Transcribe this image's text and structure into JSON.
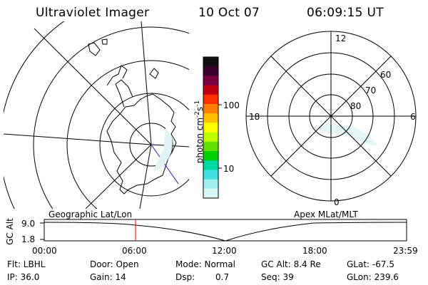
{
  "header": {
    "title": "Ultraviolet Imager",
    "date": "10 Oct 07",
    "time": "06:09:15 UT"
  },
  "colorbar": {
    "unit_prefix": "photon cm",
    "unit_exp1": "-2",
    "unit_mid": "s",
    "unit_exp2": "-1",
    "tick_100": "100",
    "tick_10": "10",
    "colors": [
      "#101010",
      "#3a0030",
      "#7a0040",
      "#c00010",
      "#ff3000",
      "#ff8000",
      "#ffc000",
      "#ffff00",
      "#c0ff00",
      "#60e000",
      "#00d000",
      "#00d8a0",
      "#40e0e0",
      "#a0f0f0",
      "#d8f8f8"
    ]
  },
  "polar_plot": {
    "label_top": "12",
    "label_left": "18",
    "label_right": "6",
    "label_bottom": "0",
    "lat_60": "60",
    "lat_70": "70",
    "lat_80": "80"
  },
  "timeline": {
    "axis_label": "GC Alt",
    "y_max": "9.0",
    "y_min": "1.8",
    "left_title": "Geographic Lat/Lon",
    "right_title": "Apex MLat/MLT",
    "ticks": [
      "00:00",
      "06:00",
      "12:00",
      "18:00",
      "23:59"
    ],
    "marker_time": "06:09",
    "marker_color": "#e00000"
  },
  "info": {
    "flt": "Flt: LBHL",
    "ip": "IP: 36.0",
    "door": "Door: Open",
    "gain": "Gain: 14",
    "mode": "Mode: Normal",
    "dsp_label": "Dsp:",
    "dsp_value": "0.7",
    "gc_alt": "GC Alt: 8.4 Re",
    "seq": "Seq: 39",
    "glat": "GLat: -67.5",
    "glon": "GLon: 239.6"
  }
}
